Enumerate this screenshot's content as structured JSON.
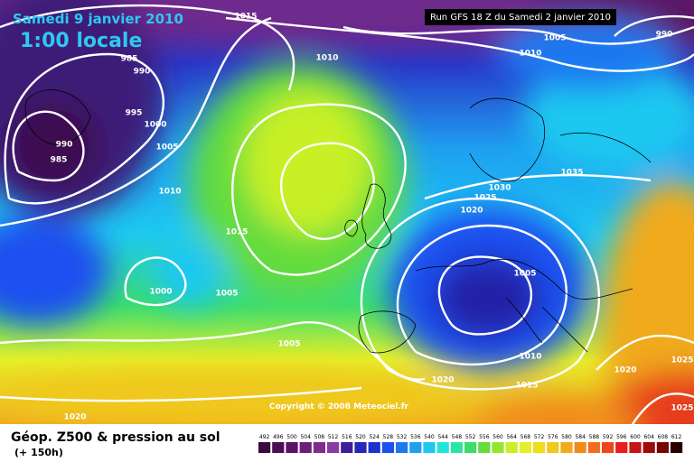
{
  "header": {
    "date": "Samedi 9 janvier 2010",
    "local_time": "1:00 locale",
    "run": "Run GFS 18 Z du Samedi 2 janvier 2010"
  },
  "isobar_labels": [
    "1015",
    "1005",
    "990",
    "985",
    "990",
    "1010",
    "1010",
    "995",
    "1000",
    "1005",
    "990",
    "985",
    "1035",
    "1010",
    "1030",
    "1025",
    "1020",
    "1015",
    "1005",
    "1000",
    "1005",
    "1005",
    "1010",
    "1020",
    "1025",
    "1020",
    "1015",
    "1025",
    "1020"
  ],
  "copyright": "Copyright © 2008 Meteociel.fr",
  "footer": {
    "title": "Géop. Z500 & pression au sol",
    "lead_time": "(+ 150h)"
  },
  "legend": {
    "values": [
      492,
      496,
      500,
      504,
      508,
      512,
      516,
      520,
      524,
      528,
      532,
      536,
      540,
      544,
      548,
      552,
      556,
      560,
      564,
      568,
      572,
      576,
      580,
      584,
      588,
      592,
      596,
      600,
      604,
      608,
      612
    ],
    "colors": [
      "#3c0a3c",
      "#4b0f55",
      "#5a1464",
      "#6e1e78",
      "#7d2d8c",
      "#8c3ca0",
      "#3c1e96",
      "#2828b4",
      "#1e32d2",
      "#1e50f0",
      "#1e78f0",
      "#1ea0f0",
      "#1ec8f0",
      "#1ee6dc",
      "#28e6a0",
      "#3cdc6e",
      "#64dc3c",
      "#96e628",
      "#c8f028",
      "#e6f028",
      "#f0dc1e",
      "#f0c81e",
      "#f0aa1e",
      "#f08c1e",
      "#f06e1e",
      "#f0461e",
      "#e61e1e",
      "#c81414",
      "#a00a0a",
      "#780505",
      "#280000"
    ]
  }
}
